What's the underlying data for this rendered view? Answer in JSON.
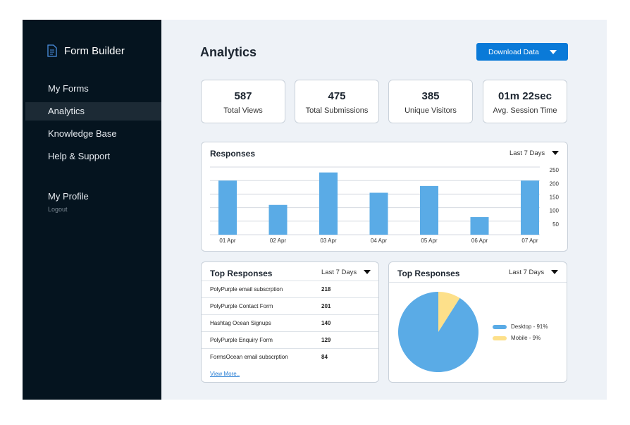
{
  "app": {
    "name": "Form Builder",
    "nav": [
      "My Forms",
      "Analytics",
      "Knowledge Base",
      "Help & Support"
    ],
    "active": 1,
    "profile": "My Profile",
    "logout": "Logout"
  },
  "header": {
    "title": "Analytics",
    "button": "Download Data"
  },
  "stats": [
    {
      "value": "587",
      "label": "Total Views"
    },
    {
      "value": "475",
      "label": "Total Submissions"
    },
    {
      "value": "385",
      "label": "Unique Visitors"
    },
    {
      "value": "01m 22sec",
      "label": "Avg. Session Time"
    }
  ],
  "table": {
    "title": "Top Responses",
    "filter": "Last 7 Days",
    "rows": [
      [
        "PolyPurple email subscrption",
        "218"
      ],
      [
        "PolyPurple Contact Form",
        "201"
      ],
      [
        "Hashtag Ocean Signups",
        "140"
      ],
      [
        "PolyPurple Enquiry Form",
        "129"
      ],
      [
        "FormsOcean email subscrption",
        "84"
      ]
    ],
    "more": "View More.."
  },
  "chart_data": [
    {
      "type": "bar",
      "title": "Responses",
      "filter": "Last 7 Days",
      "categories": [
        "01 Apr",
        "02 Apr",
        "03 Apr",
        "04 Apr",
        "05 Apr",
        "06 Apr",
        "07 Apr"
      ],
      "values": [
        200,
        110,
        230,
        155,
        180,
        65,
        200
      ],
      "color": "#5aabe6",
      "ylim": [
        0,
        250
      ],
      "yticks": [
        50,
        100,
        150,
        200,
        250
      ],
      "grid": true
    },
    {
      "type": "pie",
      "title": "Top Responses",
      "filter": "Last 7 Days",
      "categories": [
        "Desktop - 91%",
        "Mobile - 9%"
      ],
      "values": [
        91,
        9
      ],
      "colors": [
        "#5aabe6",
        "#fde08a"
      ]
    }
  ]
}
